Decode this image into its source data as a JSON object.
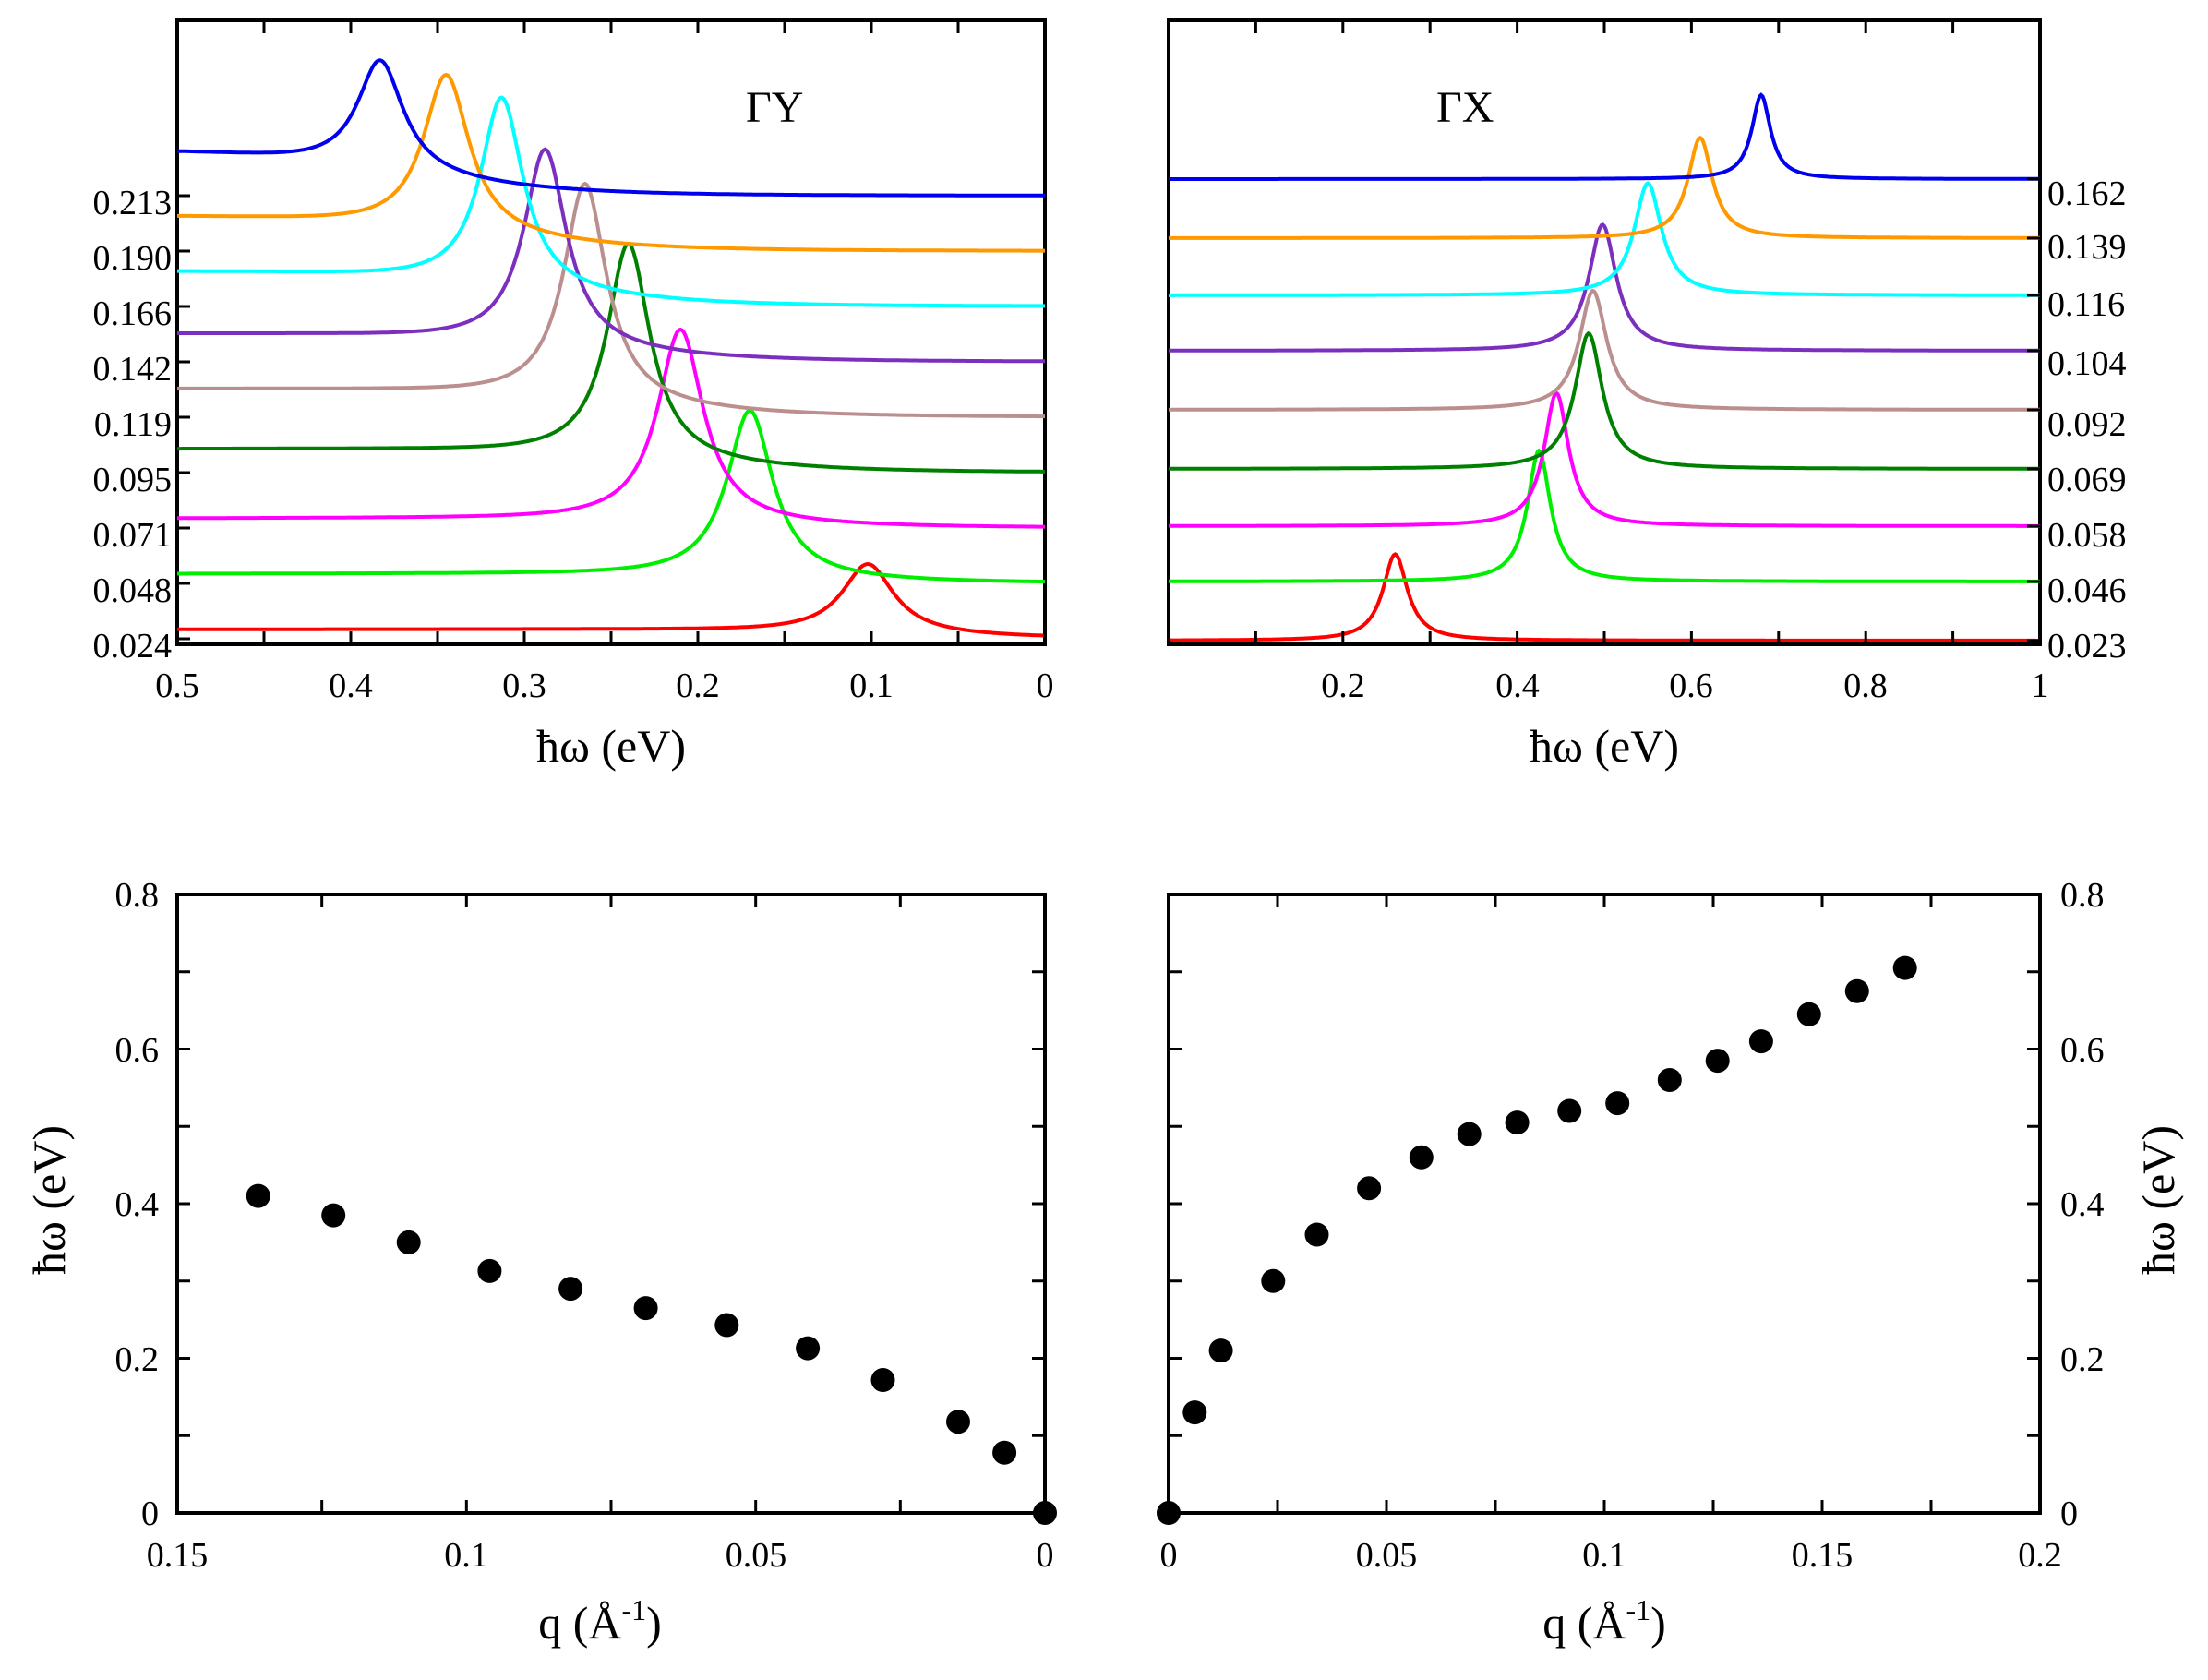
{
  "chart_data": [
    {
      "id": "gy_spectra",
      "type": "line",
      "title": "ΓY",
      "xlabel": "ħω (eV)",
      "xlim": [
        0.5,
        0
      ],
      "x_reversed": true,
      "xticks": [
        "0.5",
        "0.4",
        "0.3",
        "0.2",
        "0.1",
        "0"
      ],
      "offset_labels_side": "left",
      "offset_labels": [
        "0.024",
        "0.048",
        "0.071",
        "0.095",
        "0.119",
        "0.142",
        "0.166",
        "0.190",
        "0.213"
      ],
      "series": [
        {
          "name": "0.024",
          "color": "#ff0000",
          "baseline": 0.024,
          "peak_x": 0.102,
          "peak_height": 0.03,
          "width": 0.018,
          "tail": 0.004
        },
        {
          "name": "0.048",
          "color": "#00ee00",
          "baseline": 0.048,
          "peak_x": 0.17,
          "peak_height": 0.072,
          "width": 0.016,
          "tail": 0.004
        },
        {
          "name": "0.071",
          "color": "#ff00ff",
          "baseline": 0.071,
          "peak_x": 0.21,
          "peak_height": 0.083,
          "width": 0.016,
          "tail": 0.004
        },
        {
          "name": "0.095",
          "color": "#008000",
          "baseline": 0.095,
          "peak_x": 0.24,
          "peak_height": 0.093,
          "width": 0.015,
          "tail": 0.01
        },
        {
          "name": "0.119",
          "color": "#bc8f8f",
          "baseline": 0.119,
          "peak_x": 0.265,
          "peak_height": 0.094,
          "width": 0.015,
          "tail": 0.012
        },
        {
          "name": "0.142",
          "color": "#7b2fbe",
          "baseline": 0.142,
          "peak_x": 0.288,
          "peak_height": 0.085,
          "width": 0.015,
          "tail": 0.012
        },
        {
          "name": "0.166",
          "color": "#00ffff",
          "baseline": 0.166,
          "peak_x": 0.313,
          "peak_height": 0.082,
          "width": 0.015,
          "tail": 0.015
        },
        {
          "name": "0.190",
          "color": "#ff9900",
          "baseline": 0.19,
          "peak_x": 0.345,
          "peak_height": 0.068,
          "width": 0.016,
          "tail": 0.015
        },
        {
          "name": "0.213",
          "color": "#0000ee",
          "baseline": 0.213,
          "peak_x": 0.383,
          "peak_height": 0.048,
          "width": 0.016,
          "tail": 0.02
        }
      ]
    },
    {
      "id": "gx_spectra",
      "type": "line",
      "title": "ΓX",
      "xlabel": "ħω (eV)",
      "xlim": [
        0,
        1
      ],
      "xticks": [
        "0.2",
        "0.4",
        "0.6",
        "0.8",
        "1"
      ],
      "offset_labels_side": "right",
      "offset_labels": [
        "0.023",
        "0.046",
        "0.058",
        "0.069",
        "0.092",
        "0.104",
        "0.116",
        "0.139",
        "0.162"
      ],
      "series": [
        {
          "name": "0.023",
          "color": "#ff0000",
          "baseline": 0.023,
          "peak_x": 0.26,
          "peak_height": 0.037,
          "width": 0.017,
          "tail": 0.0
        },
        {
          "name": "0.046",
          "color": "#00ee00",
          "baseline": 0.046,
          "peak_x": 0.425,
          "peak_height": 0.056,
          "width": 0.016,
          "tail": 0.0
        },
        {
          "name": "0.058",
          "color": "#ff00ff",
          "baseline": 0.058,
          "peak_x": 0.445,
          "peak_height": 0.057,
          "width": 0.017,
          "tail": 0.0
        },
        {
          "name": "0.069",
          "color": "#008000",
          "baseline": 0.069,
          "peak_x": 0.482,
          "peak_height": 0.058,
          "width": 0.019,
          "tail": 0.0
        },
        {
          "name": "0.092",
          "color": "#bc8f8f",
          "baseline": 0.092,
          "peak_x": 0.487,
          "peak_height": 0.051,
          "width": 0.019,
          "tail": 0.0
        },
        {
          "name": "0.104",
          "color": "#7b2fbe",
          "baseline": 0.104,
          "peak_x": 0.498,
          "peak_height": 0.054,
          "width": 0.019,
          "tail": 0.0
        },
        {
          "name": "0.116",
          "color": "#00ffff",
          "baseline": 0.116,
          "peak_x": 0.55,
          "peak_height": 0.048,
          "width": 0.019,
          "tail": 0.0
        },
        {
          "name": "0.139",
          "color": "#ff9900",
          "baseline": 0.139,
          "peak_x": 0.61,
          "peak_height": 0.043,
          "width": 0.017,
          "tail": 0.0
        },
        {
          "name": "0.162",
          "color": "#0000ee",
          "baseline": 0.162,
          "peak_x": 0.68,
          "peak_height": 0.036,
          "width": 0.013,
          "tail": 0.0
        }
      ]
    },
    {
      "id": "gy_dispersion",
      "type": "scatter",
      "xlabel": "q (Å",
      "xlabel_sup": "-1",
      "xlabel_close": ")",
      "ylabel": "ħω (eV)",
      "xlim": [
        0.15,
        0
      ],
      "x_reversed": true,
      "ylim": [
        0,
        0.8
      ],
      "xticks": [
        "0.15",
        "0.1",
        "0.05",
        "0"
      ],
      "yticks": [
        "0",
        "0.2",
        "0.4",
        "0.6",
        "0.8"
      ],
      "x": [
        0.136,
        0.123,
        0.11,
        0.096,
        0.082,
        0.069,
        0.055,
        0.041,
        0.028,
        0.015,
        0.007,
        0.0
      ],
      "y": [
        0.41,
        0.385,
        0.35,
        0.313,
        0.29,
        0.265,
        0.243,
        0.213,
        0.172,
        0.118,
        0.078,
        0.0
      ]
    },
    {
      "id": "gx_dispersion",
      "type": "scatter",
      "xlabel": "q (Å",
      "xlabel_sup": "-1",
      "xlabel_close": ")",
      "ylabel": "ħω (eV)",
      "ylabel_side": "right",
      "xlim": [
        0,
        0.2
      ],
      "ylim": [
        0,
        0.8
      ],
      "xticks": [
        "0",
        "0.05",
        "0.1",
        "0.15",
        "0.2"
      ],
      "yticks": [
        "0",
        "0.2",
        "0.4",
        "0.6",
        "0.8"
      ],
      "x": [
        0.0,
        0.006,
        0.012,
        0.024,
        0.034,
        0.046,
        0.058,
        0.069,
        0.08,
        0.092,
        0.103,
        0.115,
        0.126,
        0.136,
        0.147,
        0.158,
        0.169
      ],
      "y": [
        0.0,
        0.13,
        0.21,
        0.3,
        0.36,
        0.42,
        0.46,
        0.49,
        0.505,
        0.52,
        0.53,
        0.56,
        0.585,
        0.61,
        0.645,
        0.675,
        0.705
      ]
    }
  ]
}
